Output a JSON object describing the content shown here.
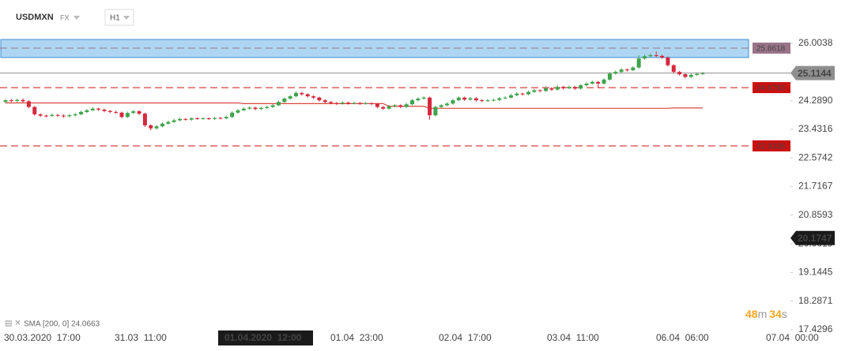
{
  "header": {
    "symbol": "USDMXN",
    "market": "FX",
    "interval": "H1"
  },
  "chart_data": {
    "type": "candlestick",
    "up_color": "#3fa34d",
    "down_color": "#d6283d",
    "candles": [
      [
        24.25,
        24.34,
        24.21,
        24.3
      ],
      [
        24.3,
        24.34,
        24.24,
        24.28
      ],
      [
        24.28,
        24.35,
        24.24,
        24.31
      ],
      [
        24.31,
        24.35,
        24.23,
        24.27
      ],
      [
        24.27,
        24.3,
        24.06,
        24.1
      ],
      [
        24.1,
        24.13,
        23.84,
        23.88
      ],
      [
        23.88,
        23.91,
        23.8,
        23.84
      ],
      [
        23.84,
        23.87,
        23.79,
        23.83
      ],
      [
        23.83,
        23.9,
        23.8,
        23.86
      ],
      [
        23.86,
        23.89,
        23.8,
        23.84
      ],
      [
        23.84,
        23.88,
        23.78,
        23.82
      ],
      [
        23.82,
        23.89,
        23.79,
        23.85
      ],
      [
        23.85,
        23.92,
        23.81,
        23.88
      ],
      [
        23.88,
        23.99,
        23.85,
        23.95
      ],
      [
        23.95,
        24.04,
        23.92,
        24.0
      ],
      [
        24.0,
        24.09,
        23.97,
        24.05
      ],
      [
        24.05,
        24.08,
        23.98,
        24.02
      ],
      [
        24.02,
        24.05,
        23.94,
        23.98
      ],
      [
        23.98,
        24.01,
        23.91,
        23.95
      ],
      [
        23.95,
        23.99,
        23.89,
        23.93
      ],
      [
        23.93,
        23.96,
        23.76,
        23.8
      ],
      [
        23.8,
        23.96,
        23.77,
        23.92
      ],
      [
        23.92,
        24.01,
        23.89,
        23.97
      ],
      [
        23.97,
        24.0,
        23.86,
        23.9
      ],
      [
        23.9,
        23.93,
        23.5,
        23.55
      ],
      [
        23.55,
        23.58,
        23.4,
        23.46
      ],
      [
        23.46,
        23.56,
        23.42,
        23.52
      ],
      [
        23.52,
        23.64,
        23.49,
        23.6
      ],
      [
        23.6,
        23.69,
        23.57,
        23.65
      ],
      [
        23.65,
        23.74,
        23.62,
        23.7
      ],
      [
        23.7,
        23.78,
        23.67,
        23.74
      ],
      [
        23.74,
        23.77,
        23.69,
        23.72
      ],
      [
        23.72,
        23.79,
        23.69,
        23.76
      ],
      [
        23.76,
        23.79,
        23.72,
        23.75
      ],
      [
        23.75,
        23.79,
        23.72,
        23.76
      ],
      [
        23.76,
        23.79,
        23.71,
        23.74
      ],
      [
        23.74,
        23.8,
        23.71,
        23.77
      ],
      [
        23.77,
        23.8,
        23.73,
        23.76
      ],
      [
        23.76,
        23.84,
        23.73,
        23.8
      ],
      [
        23.8,
        23.97,
        23.77,
        23.93
      ],
      [
        23.93,
        24.04,
        23.9,
        24.0
      ],
      [
        24.0,
        24.09,
        23.97,
        24.05
      ],
      [
        24.05,
        24.12,
        24.02,
        24.08
      ],
      [
        24.08,
        24.11,
        24.0,
        24.04
      ],
      [
        24.04,
        24.11,
        24.01,
        24.07
      ],
      [
        24.07,
        24.14,
        24.04,
        24.1
      ],
      [
        24.1,
        24.19,
        24.07,
        24.15
      ],
      [
        24.15,
        24.29,
        24.12,
        24.25
      ],
      [
        24.25,
        24.39,
        24.22,
        24.35
      ],
      [
        24.35,
        24.46,
        24.32,
        24.42
      ],
      [
        24.42,
        24.57,
        24.39,
        24.52
      ],
      [
        24.52,
        24.55,
        24.44,
        24.48
      ],
      [
        24.48,
        24.51,
        24.38,
        24.42
      ],
      [
        24.42,
        24.45,
        24.34,
        24.38
      ],
      [
        24.38,
        24.41,
        24.26,
        24.3
      ],
      [
        24.3,
        24.33,
        24.21,
        24.25
      ],
      [
        24.25,
        24.28,
        24.18,
        24.22
      ],
      [
        24.22,
        24.25,
        24.16,
        24.2
      ],
      [
        24.2,
        24.27,
        24.17,
        24.23
      ],
      [
        24.23,
        24.26,
        24.17,
        24.21
      ],
      [
        24.21,
        24.26,
        24.18,
        24.22
      ],
      [
        24.22,
        24.25,
        24.16,
        24.2
      ],
      [
        24.2,
        24.25,
        24.17,
        24.21
      ],
      [
        24.21,
        24.24,
        24.15,
        24.19
      ],
      [
        24.19,
        24.22,
        24.06,
        24.1
      ],
      [
        24.1,
        24.13,
        24.01,
        24.05
      ],
      [
        24.05,
        24.16,
        24.02,
        24.12
      ],
      [
        24.12,
        24.19,
        24.09,
        24.15
      ],
      [
        24.15,
        24.18,
        24.06,
        24.1
      ],
      [
        24.1,
        24.22,
        24.07,
        24.18
      ],
      [
        24.18,
        24.34,
        24.15,
        24.3
      ],
      [
        24.3,
        24.39,
        24.27,
        24.35
      ],
      [
        24.35,
        24.42,
        24.32,
        24.38
      ],
      [
        24.38,
        24.41,
        23.72,
        23.85
      ],
      [
        23.85,
        24.14,
        23.82,
        24.1
      ],
      [
        24.1,
        24.19,
        24.07,
        24.15
      ],
      [
        24.15,
        24.24,
        24.12,
        24.2
      ],
      [
        24.2,
        24.34,
        24.17,
        24.3
      ],
      [
        24.3,
        24.42,
        24.27,
        24.38
      ],
      [
        24.38,
        24.41,
        24.28,
        24.32
      ],
      [
        24.32,
        24.4,
        24.29,
        24.36
      ],
      [
        24.36,
        24.39,
        24.26,
        24.3
      ],
      [
        24.3,
        24.33,
        24.24,
        24.28
      ],
      [
        24.28,
        24.34,
        24.25,
        24.3
      ],
      [
        24.3,
        24.35,
        24.27,
        24.31
      ],
      [
        24.31,
        24.4,
        24.28,
        24.36
      ],
      [
        24.36,
        24.42,
        24.33,
        24.38
      ],
      [
        24.38,
        24.49,
        24.35,
        24.45
      ],
      [
        24.45,
        24.54,
        24.42,
        24.5
      ],
      [
        24.5,
        24.53,
        24.44,
        24.48
      ],
      [
        24.48,
        24.59,
        24.45,
        24.55
      ],
      [
        24.55,
        24.64,
        24.52,
        24.6
      ],
      [
        24.6,
        24.63,
        24.54,
        24.58
      ],
      [
        24.58,
        24.72,
        24.55,
        24.66
      ],
      [
        24.66,
        24.69,
        24.58,
        24.62
      ],
      [
        24.62,
        24.76,
        24.59,
        24.7
      ],
      [
        24.7,
        24.73,
        24.62,
        24.66
      ],
      [
        24.66,
        24.74,
        24.63,
        24.7
      ],
      [
        24.7,
        24.73,
        24.61,
        24.65
      ],
      [
        24.65,
        24.79,
        24.62,
        24.75
      ],
      [
        24.75,
        24.84,
        24.72,
        24.8
      ],
      [
        24.8,
        24.89,
        24.77,
        24.85
      ],
      [
        24.85,
        24.88,
        24.66,
        24.8
      ],
      [
        24.8,
        24.96,
        24.77,
        24.92
      ],
      [
        24.92,
        25.14,
        24.89,
        25.1
      ],
      [
        25.1,
        25.19,
        25.07,
        25.15
      ],
      [
        25.15,
        25.26,
        25.12,
        25.22
      ],
      [
        25.22,
        25.25,
        25.16,
        25.2
      ],
      [
        25.2,
        25.32,
        25.17,
        25.28
      ],
      [
        25.28,
        25.65,
        25.25,
        25.55
      ],
      [
        25.55,
        25.66,
        25.52,
        25.62
      ],
      [
        25.62,
        25.7,
        25.58,
        25.65
      ],
      [
        25.65,
        25.76,
        25.59,
        25.63
      ],
      [
        25.63,
        25.67,
        25.54,
        25.58
      ],
      [
        25.58,
        25.61,
        25.31,
        25.35
      ],
      [
        25.35,
        25.38,
        25.11,
        25.15
      ],
      [
        25.15,
        25.18,
        25.04,
        25.08
      ],
      [
        25.08,
        25.11,
        24.96,
        25.0
      ],
      [
        25.0,
        25.1,
        24.97,
        25.06
      ],
      [
        25.06,
        25.13,
        25.03,
        25.09
      ],
      [
        25.09,
        25.15,
        25.06,
        25.11
      ]
    ],
    "sma": {
      "name": "SMA [200, 0] 24.0663",
      "color": "#d9473f",
      "values": [
        24.22,
        24.22,
        24.22,
        24.22,
        24.22,
        24.22,
        24.22,
        24.22,
        24.22,
        24.22,
        24.22,
        24.22,
        24.22,
        24.22,
        24.22,
        24.22,
        24.22,
        24.22,
        24.22,
        24.22,
        24.22,
        24.22,
        24.22,
        24.22,
        24.22,
        24.22,
        24.22,
        24.22,
        24.22,
        24.22,
        24.22,
        24.22,
        24.22,
        24.22,
        24.22,
        24.22,
        24.22,
        24.22,
        24.22,
        24.22,
        24.22,
        24.2,
        24.2,
        24.2,
        24.2,
        24.2,
        24.2,
        24.2,
        24.2,
        24.2,
        24.2,
        24.2,
        24.2,
        24.2,
        24.2,
        24.2,
        24.2,
        24.2,
        24.2,
        24.2,
        24.2,
        24.2,
        24.2,
        24.2,
        24.2,
        24.2,
        24.12,
        24.12,
        24.12,
        24.12,
        24.12,
        24.12,
        24.12,
        24.06,
        24.06,
        24.06,
        24.06,
        24.06,
        24.06,
        24.06,
        24.06,
        24.06,
        24.06,
        24.06,
        24.06,
        24.06,
        24.06,
        24.06,
        24.06,
        24.06,
        24.06,
        24.06,
        24.06,
        24.06,
        24.06,
        24.06,
        24.06,
        24.06,
        24.06,
        24.06,
        24.06,
        24.06,
        24.06,
        24.06,
        24.06,
        24.06,
        24.06,
        24.06,
        24.06,
        24.06,
        24.06,
        24.06,
        24.06,
        24.06,
        24.06,
        24.07,
        24.07,
        24.07,
        24.07,
        24.07,
        24.07
      ]
    },
    "ylim": [
      17.4296,
      26.0038
    ],
    "yticks": [
      26.0038,
      {
        "value": 24.289,
        "label": "24.2890"
      },
      23.4316,
      22.5742,
      21.7167,
      20.8593,
      20.0019,
      19.1445,
      18.2871,
      17.4296
    ],
    "x_labels": [
      "30.03.2020  17:00",
      "31.03  11:00",
      "01.04.2020  12:00",
      "01.04  23:00",
      "02.04  17:00",
      "03.04  11:00",
      "06.04  06:00",
      "07.04  00:00"
    ],
    "levels": [
      {
        "value": 25.8618,
        "color": "#9a7488",
        "style": "dashed"
      },
      {
        "value": 25.1144,
        "color": "#8f8f8f",
        "style": "solid"
      },
      {
        "value": 24.6793,
        "color": "#cc1010",
        "style": "dashed"
      },
      {
        "value": 22.9338,
        "color": "#cc1010",
        "style": "dashed"
      }
    ],
    "zone": [
      25.58,
      26.12
    ],
    "zone_color": "#aed6f3",
    "crosshair": 20.1747,
    "timer": [
      "48",
      "m",
      "34",
      "s"
    ]
  }
}
